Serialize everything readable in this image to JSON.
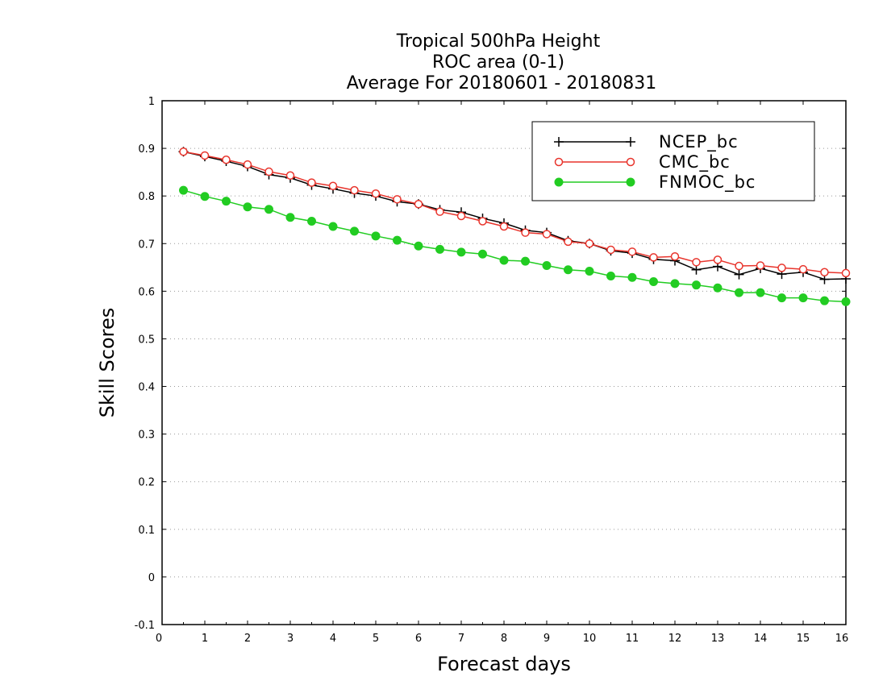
{
  "chart_data": {
    "type": "line",
    "title": [
      "Tropical 500hPa Height",
      "ROC area (0-1)",
      "Average For 20180601 - 20180831"
    ],
    "xlabel": "Forecast days",
    "ylabel": "Skill Scores",
    "xlim": [
      0,
      16
    ],
    "ylim": [
      -0.1,
      1
    ],
    "xticks": [
      "0",
      "1",
      "2",
      "3",
      "4",
      "5",
      "6",
      "7",
      "8",
      "9",
      "10",
      "11",
      "12",
      "13",
      "14",
      "15",
      "16"
    ],
    "yticks": [
      "-0.1",
      "0",
      "0.1",
      "0.2",
      "0.3",
      "0.4",
      "0.5",
      "0.6",
      "0.7",
      "0.8",
      "0.9",
      "1"
    ],
    "grid": true,
    "legend_position": "top-right",
    "x": [
      0.5,
      1,
      1.5,
      2,
      2.5,
      3,
      3.5,
      4,
      4.5,
      5,
      5.5,
      6,
      6.5,
      7,
      7.5,
      8,
      8.5,
      9,
      9.5,
      10,
      10.5,
      11,
      11.5,
      12,
      12.5,
      13,
      13.5,
      14,
      14.5,
      15,
      15.5,
      16
    ],
    "series": [
      {
        "name": "NCEP_bc",
        "color": "#000000",
        "marker": "plus",
        "values": [
          0.893,
          0.883,
          0.873,
          0.862,
          0.845,
          0.838,
          0.823,
          0.815,
          0.806,
          0.8,
          0.788,
          0.783,
          0.771,
          0.766,
          0.753,
          0.743,
          0.728,
          0.723,
          0.706,
          0.7,
          0.685,
          0.68,
          0.667,
          0.664,
          0.645,
          0.652,
          0.635,
          0.648,
          0.636,
          0.64,
          0.625,
          0.626
        ]
      },
      {
        "name": "CMC_bc",
        "color": "#e8342c",
        "marker": "open-circle",
        "values": [
          0.893,
          0.885,
          0.876,
          0.866,
          0.851,
          0.843,
          0.828,
          0.821,
          0.812,
          0.805,
          0.793,
          0.783,
          0.767,
          0.758,
          0.747,
          0.736,
          0.723,
          0.72,
          0.704,
          0.7,
          0.687,
          0.683,
          0.671,
          0.673,
          0.661,
          0.666,
          0.653,
          0.654,
          0.649,
          0.646,
          0.64,
          0.638
        ]
      },
      {
        "name": "FNMOC_bc",
        "color": "#22cc22",
        "marker": "filled-circle",
        "values": [
          0.812,
          0.799,
          0.789,
          0.777,
          0.772,
          0.755,
          0.747,
          0.736,
          0.726,
          0.716,
          0.707,
          0.695,
          0.688,
          0.682,
          0.678,
          0.665,
          0.663,
          0.654,
          0.645,
          0.642,
          0.632,
          0.629,
          0.62,
          0.616,
          0.613,
          0.607,
          0.597,
          0.597,
          0.586,
          0.586,
          0.58,
          0.578
        ]
      }
    ]
  }
}
